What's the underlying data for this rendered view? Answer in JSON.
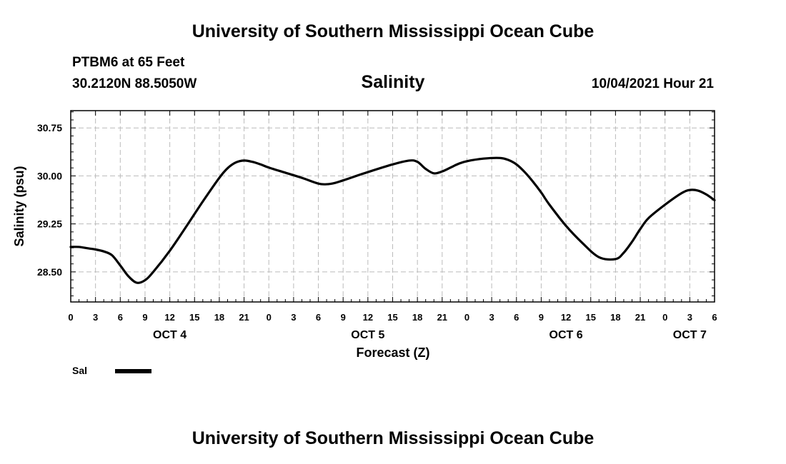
{
  "header": {
    "title": "University of Southern Mississippi Ocean Cube",
    "station": "PTBM6 at 65 Feet",
    "coords": "30.2120N  88.5050W",
    "subtitle": "Salinity",
    "datetime": "10/04/2021 Hour 21"
  },
  "footer": {
    "title": "University of Southern Mississippi Ocean Cube"
  },
  "colors": {
    "line": "#000000",
    "grid": "#bbbbbb"
  },
  "chart_data": {
    "type": "line",
    "title": "Salinity",
    "xlabel": "Forecast (Z)",
    "ylabel": "Salinity (psu)",
    "ylim": [
      28.03,
      31.02
    ],
    "yticks": [
      28.5,
      29.25,
      30.0,
      30.75
    ],
    "ytick_labels": [
      "28.50",
      "29.25",
      "30.00",
      "30.75"
    ],
    "xlim": [
      0,
      78
    ],
    "x_unit": "forecast hours from 00Z Oct 4",
    "xtick_labels": [
      "0",
      "3",
      "6",
      "9",
      "12",
      "15",
      "18",
      "21",
      "0",
      "3",
      "6",
      "9",
      "12",
      "15",
      "18",
      "21",
      "0",
      "3",
      "6",
      "9",
      "12",
      "15",
      "18",
      "21",
      "0",
      "3",
      "6"
    ],
    "day_labels": [
      {
        "label": "OCT 4",
        "hour": 12
      },
      {
        "label": "OCT 5",
        "hour": 36
      },
      {
        "label": "OCT 6",
        "hour": 60
      },
      {
        "label": "OCT 7",
        "hour": 75
      }
    ],
    "grid": true,
    "legend": {
      "position": "bottom-left",
      "entries": [
        {
          "label": "Sal"
        }
      ]
    },
    "series": [
      {
        "name": "Sal",
        "x": [
          0,
          1,
          2,
          3,
          4,
          5,
          6,
          7,
          8,
          9,
          10,
          12,
          14,
          16,
          18,
          19,
          20,
          21,
          22,
          23,
          24,
          26,
          28,
          30,
          31,
          32,
          33,
          36,
          39,
          41,
          42,
          43,
          44,
          45,
          46,
          47,
          48,
          50,
          52,
          53,
          54,
          55,
          56,
          57,
          58,
          60,
          62,
          64,
          66,
          67,
          68,
          69,
          70,
          72,
          74,
          75,
          76,
          77,
          78
        ],
        "y": [
          28.89,
          28.89,
          28.87,
          28.85,
          28.82,
          28.76,
          28.6,
          28.43,
          28.33,
          28.37,
          28.5,
          28.83,
          29.21,
          29.6,
          29.97,
          30.12,
          30.21,
          30.24,
          30.22,
          30.18,
          30.13,
          30.05,
          29.97,
          29.88,
          29.87,
          29.89,
          29.93,
          30.06,
          30.18,
          30.24,
          30.22,
          30.11,
          30.04,
          30.07,
          30.13,
          30.19,
          30.23,
          30.27,
          30.28,
          30.25,
          30.18,
          30.06,
          29.91,
          29.74,
          29.55,
          29.22,
          28.95,
          28.73,
          28.7,
          28.8,
          28.97,
          29.17,
          29.34,
          29.55,
          29.73,
          29.78,
          29.77,
          29.71,
          29.62
        ]
      }
    ]
  }
}
